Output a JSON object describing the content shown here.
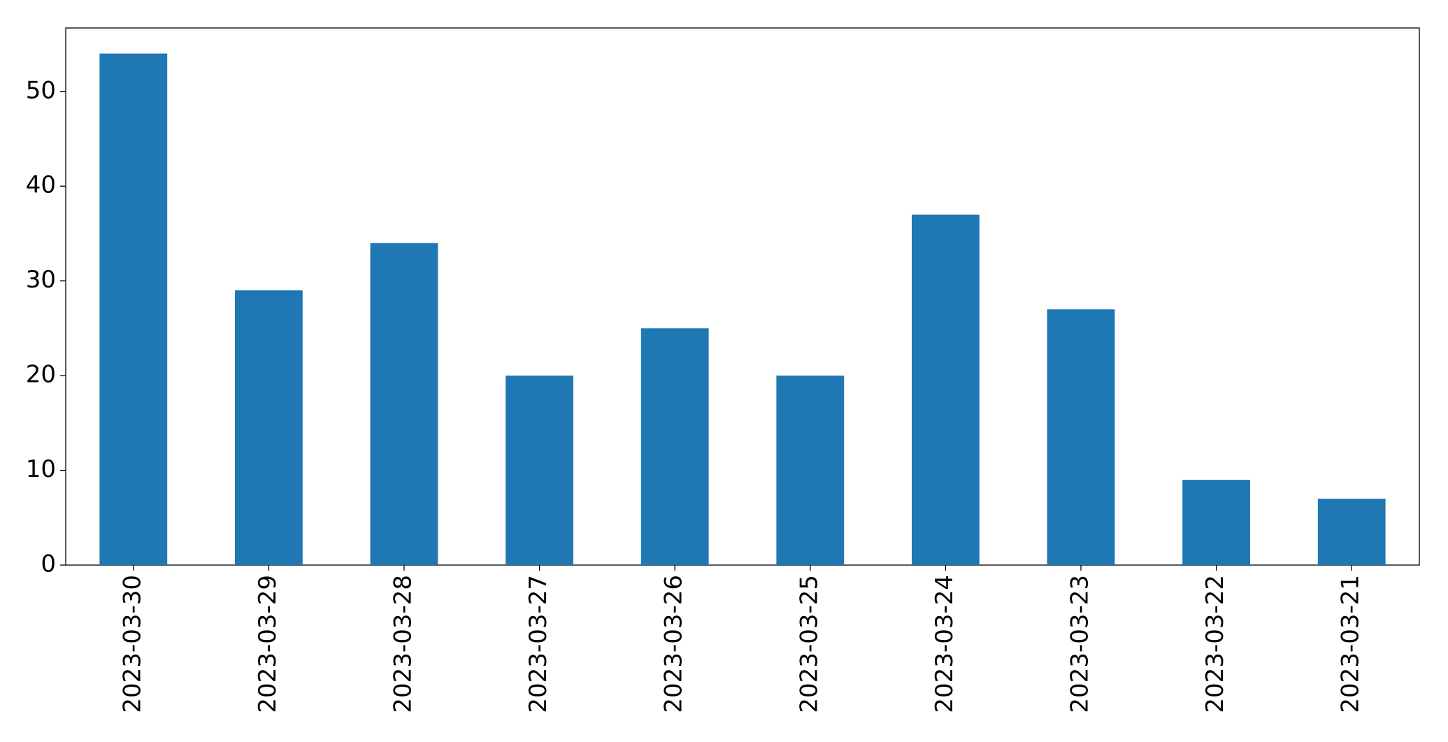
{
  "chart_data": {
    "type": "bar",
    "categories": [
      "2023-03-30",
      "2023-03-29",
      "2023-03-28",
      "2023-03-27",
      "2023-03-26",
      "2023-03-25",
      "2023-03-24",
      "2023-03-23",
      "2023-03-22",
      "2023-03-21"
    ],
    "values": [
      54,
      29,
      34,
      20,
      25,
      20,
      37,
      27,
      9,
      7
    ],
    "color": "#1f77b4",
    "ylim": [
      0,
      56.7
    ],
    "yticks": [
      0,
      10,
      20,
      30,
      40,
      50
    ],
    "grid": false
  }
}
